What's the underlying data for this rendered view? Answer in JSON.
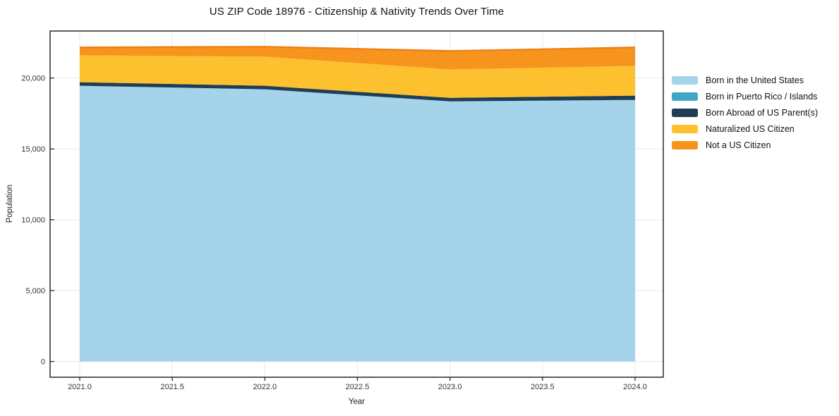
{
  "chart_data": {
    "type": "area",
    "stacked": true,
    "title": "US ZIP Code 18976 - Citizenship & Nativity Trends Over Time",
    "xlabel": "Year",
    "ylabel": "Population",
    "x": [
      2021,
      2022,
      2023,
      2024
    ],
    "series": [
      {
        "name": "Born in the United States",
        "color": "#a4d3ea",
        "values": [
          19450,
          19200,
          18350,
          18450
        ]
      },
      {
        "name": "Born in Puerto Rico / Islands",
        "color": "#41a7c6",
        "values": [
          10,
          10,
          10,
          10
        ]
      },
      {
        "name": "Born Abroad of US Parent(s)",
        "color": "#1f3e53",
        "values": [
          250,
          250,
          250,
          300
        ]
      },
      {
        "name": "Naturalized US Citizen",
        "color": "#fdc02f",
        "values": [
          1900,
          2050,
          2000,
          2100
        ]
      },
      {
        "name": "Not a US Citizen",
        "color": "#f7941e",
        "values": [
          550,
          700,
          1300,
          1300
        ],
        "top_edge_color": "#ee8013"
      }
    ],
    "x_ticks": [
      "2021.0",
      "2021.5",
      "2022.0",
      "2022.5",
      "2023.0",
      "2023.5",
      "2024.0"
    ],
    "x_tick_values": [
      2021.0,
      2021.5,
      2022.0,
      2022.5,
      2023.0,
      2023.5,
      2024.0
    ],
    "y_ticks": [
      "0",
      "5,000",
      "10,000",
      "15,000",
      "20,000"
    ],
    "y_tick_values": [
      0,
      5000,
      10000,
      15000,
      20000
    ],
    "xlim": [
      2020.84,
      2024.15
    ],
    "ylim": [
      -1110,
      23320
    ],
    "grid": true,
    "legend_position": "outside-right",
    "colors": {
      "grid": "#e8e8e8",
      "frame": "#1a1a1a",
      "tick_label": "#333333",
      "background": "#ffffff"
    }
  }
}
